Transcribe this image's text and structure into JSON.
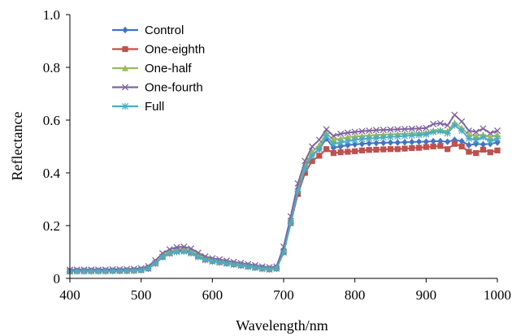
{
  "chart_data": {
    "type": "line",
    "title": "",
    "xlabel": "Wavelength/nm",
    "ylabel": "Reflectance",
    "xlim": [
      400,
      1000
    ],
    "ylim": [
      0,
      1.0
    ],
    "xticks": [
      "400",
      "500",
      "600",
      "700",
      "800",
      "900",
      "1000"
    ],
    "yticks": [
      "0",
      "0.2",
      "0.4",
      "0.6",
      "0.8",
      "1.0"
    ],
    "grid": false,
    "legend_position": "top-left",
    "x": [
      400,
      410,
      420,
      430,
      440,
      450,
      460,
      470,
      480,
      490,
      500,
      510,
      520,
      530,
      540,
      550,
      560,
      570,
      580,
      590,
      600,
      610,
      620,
      630,
      640,
      650,
      660,
      670,
      680,
      690,
      700,
      710,
      720,
      730,
      740,
      750,
      760,
      770,
      780,
      790,
      800,
      810,
      820,
      830,
      840,
      850,
      860,
      870,
      880,
      890,
      900,
      910,
      920,
      930,
      940,
      950,
      960,
      970,
      980,
      990,
      1000
    ],
    "series": [
      {
        "name": "Control",
        "color": "#4472c4",
        "marker": "diamond",
        "values": [
          0.028,
          0.029,
          0.029,
          0.029,
          0.029,
          0.029,
          0.029,
          0.03,
          0.03,
          0.031,
          0.033,
          0.04,
          0.06,
          0.085,
          0.1,
          0.108,
          0.11,
          0.103,
          0.088,
          0.075,
          0.068,
          0.064,
          0.06,
          0.056,
          0.052,
          0.048,
          0.044,
          0.04,
          0.037,
          0.04,
          0.105,
          0.22,
          0.34,
          0.42,
          0.47,
          0.49,
          0.53,
          0.495,
          0.5,
          0.505,
          0.508,
          0.51,
          0.512,
          0.513,
          0.514,
          0.515,
          0.515,
          0.516,
          0.517,
          0.518,
          0.518,
          0.52,
          0.52,
          0.518,
          0.525,
          0.52,
          0.505,
          0.51,
          0.508,
          0.51,
          0.515
        ]
      },
      {
        "name": "One-eighth",
        "color": "#c0504d",
        "marker": "square",
        "values": [
          0.027,
          0.028,
          0.028,
          0.028,
          0.028,
          0.028,
          0.029,
          0.029,
          0.029,
          0.03,
          0.032,
          0.038,
          0.058,
          0.082,
          0.096,
          0.104,
          0.105,
          0.098,
          0.084,
          0.072,
          0.066,
          0.062,
          0.058,
          0.054,
          0.05,
          0.046,
          0.042,
          0.038,
          0.035,
          0.038,
          0.1,
          0.21,
          0.32,
          0.4,
          0.445,
          0.465,
          0.49,
          0.475,
          0.478,
          0.48,
          0.482,
          0.485,
          0.487,
          0.488,
          0.489,
          0.49,
          0.49,
          0.492,
          0.494,
          0.495,
          0.498,
          0.5,
          0.502,
          0.49,
          0.51,
          0.5,
          0.48,
          0.475,
          0.488,
          0.478,
          0.485
        ]
      },
      {
        "name": "One-half",
        "color": "#9bbb59",
        "marker": "triangle",
        "values": [
          0.029,
          0.03,
          0.03,
          0.03,
          0.03,
          0.03,
          0.031,
          0.031,
          0.031,
          0.032,
          0.034,
          0.042,
          0.062,
          0.088,
          0.102,
          0.11,
          0.112,
          0.105,
          0.09,
          0.077,
          0.07,
          0.066,
          0.062,
          0.058,
          0.054,
          0.05,
          0.046,
          0.042,
          0.039,
          0.042,
          0.11,
          0.225,
          0.345,
          0.43,
          0.48,
          0.505,
          0.55,
          0.525,
          0.53,
          0.535,
          0.538,
          0.54,
          0.542,
          0.544,
          0.545,
          0.546,
          0.547,
          0.548,
          0.549,
          0.55,
          0.552,
          0.56,
          0.562,
          0.558,
          0.59,
          0.57,
          0.545,
          0.54,
          0.545,
          0.535,
          0.545
        ]
      },
      {
        "name": "One-fourth",
        "color": "#8064a2",
        "marker": "x",
        "values": [
          0.032,
          0.033,
          0.033,
          0.033,
          0.033,
          0.033,
          0.034,
          0.034,
          0.035,
          0.036,
          0.038,
          0.046,
          0.068,
          0.095,
          0.11,
          0.118,
          0.12,
          0.113,
          0.097,
          0.083,
          0.076,
          0.072,
          0.067,
          0.062,
          0.058,
          0.054,
          0.05,
          0.045,
          0.042,
          0.045,
          0.12,
          0.235,
          0.36,
          0.445,
          0.5,
          0.525,
          0.565,
          0.54,
          0.548,
          0.552,
          0.555,
          0.558,
          0.56,
          0.562,
          0.563,
          0.564,
          0.565,
          0.566,
          0.567,
          0.568,
          0.57,
          0.585,
          0.588,
          0.58,
          0.62,
          0.595,
          0.56,
          0.555,
          0.568,
          0.55,
          0.56
        ]
      },
      {
        "name": "Full",
        "color": "#4bacc6",
        "marker": "asterisk",
        "values": [
          0.026,
          0.027,
          0.027,
          0.027,
          0.027,
          0.027,
          0.028,
          0.028,
          0.028,
          0.029,
          0.031,
          0.037,
          0.056,
          0.08,
          0.094,
          0.1,
          0.102,
          0.095,
          0.081,
          0.07,
          0.064,
          0.06,
          0.056,
          0.052,
          0.048,
          0.044,
          0.04,
          0.036,
          0.034,
          0.037,
          0.098,
          0.21,
          0.33,
          0.415,
          0.465,
          0.49,
          0.54,
          0.51,
          0.515,
          0.52,
          0.525,
          0.528,
          0.53,
          0.532,
          0.534,
          0.536,
          0.538,
          0.54,
          0.542,
          0.544,
          0.546,
          0.555,
          0.558,
          0.55,
          0.58,
          0.56,
          0.53,
          0.525,
          0.535,
          0.52,
          0.53
        ]
      }
    ]
  }
}
